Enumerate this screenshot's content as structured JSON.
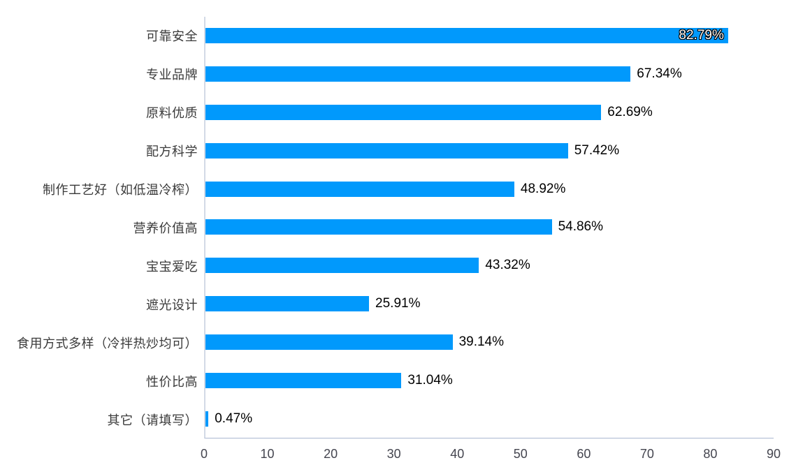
{
  "chart_data": {
    "type": "bar",
    "orientation": "horizontal",
    "title": "",
    "xlabel": "",
    "ylabel": "",
    "categories": [
      "可靠安全",
      "专业品牌",
      "原料优质",
      "配方科学",
      "制作工艺好（如低温冷榨）",
      "营养价值高",
      "宝宝爱吃",
      "遮光设计",
      "食用方式多样（冷拌热炒均可）",
      "性价比高",
      "其它（请填写）"
    ],
    "values": [
      82.79,
      67.34,
      62.69,
      57.42,
      48.92,
      54.86,
      43.32,
      25.91,
      39.14,
      31.04,
      0.47
    ],
    "value_labels": [
      "82.79%",
      "67.34%",
      "62.69%",
      "57.42%",
      "48.92%",
      "54.86%",
      "43.32%",
      "25.91%",
      "39.14%",
      "31.04%",
      "0.47%"
    ],
    "xlim": [
      0,
      90
    ],
    "x_ticks": [
      0,
      10,
      20,
      30,
      40,
      50,
      60,
      70,
      80,
      90
    ],
    "grid": false,
    "legend": "none",
    "first_value_label_inside_bar": true,
    "colors": {
      "bar": "#0199fc",
      "axis_vertical_line": "#d3dae6",
      "axis_bottom_line": "#aab7d0",
      "tick_label": "#44454f",
      "category_label": "#3a3a3a",
      "value_label": "#000000",
      "inside_value_label": "#ffffff",
      "background": "#ffffff"
    }
  }
}
